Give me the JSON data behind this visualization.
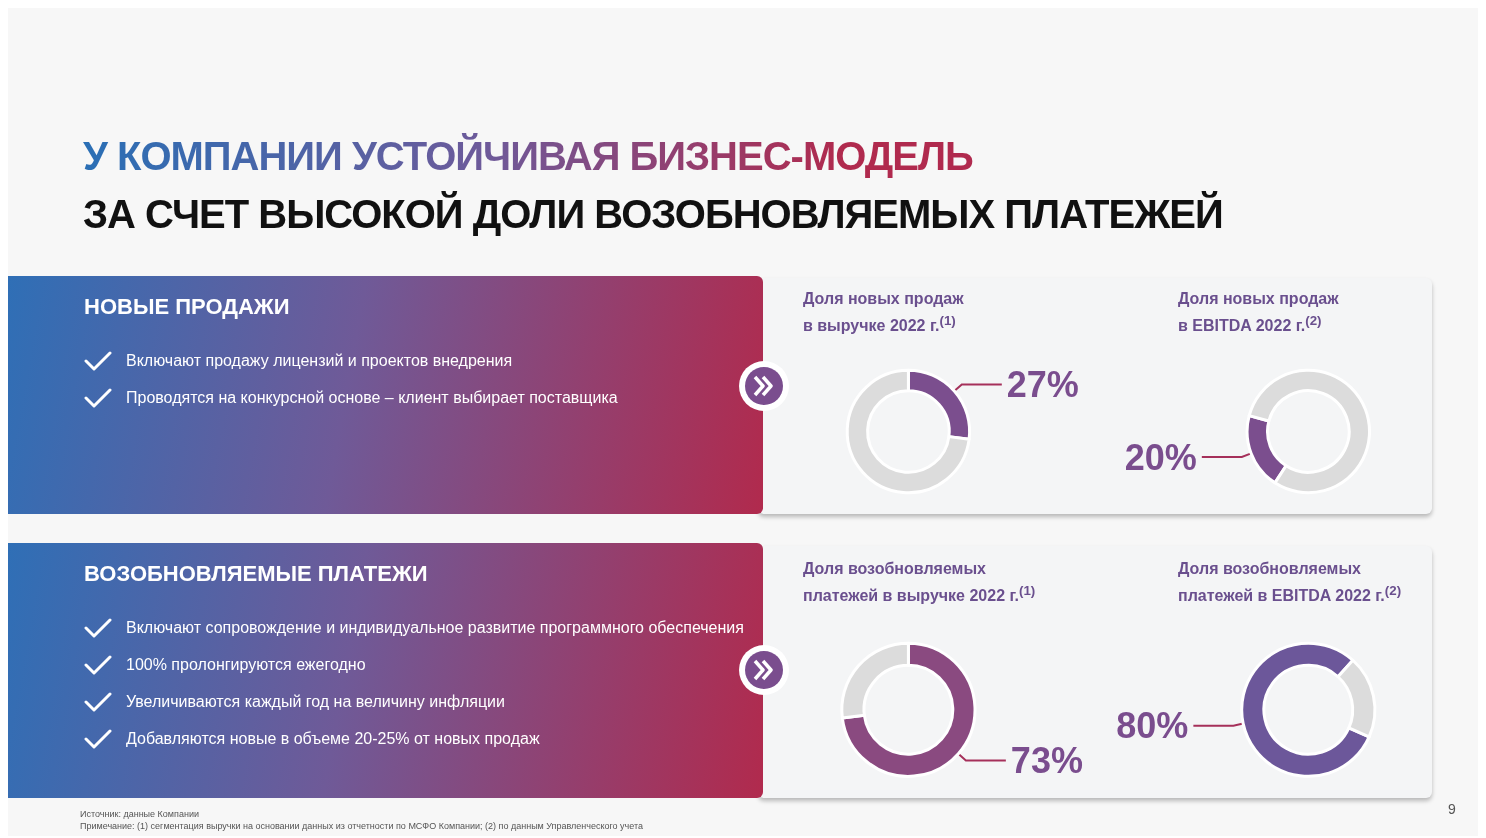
{
  "chart_data": [
    {
      "type": "other",
      "title": "У КОМПАНИИ УСТОЙЧИВАЯ БИЗНЕС-МОДЕЛЬ",
      "subtitle": "ЗА СЧЕТ ВЫСОКОЙ ДОЛИ ВОЗОБНОВЛЯЕМЫХ ПЛАТЕЖЕЙ"
    },
    {
      "type": "other",
      "title": "НОВЫЕ ПРОДАЖИ",
      "annotations": [
        "Включают продажу лицензий и проектов внедрения",
        "Проводятся на конкурсной основе – клиент выбирает поставщика"
      ]
    },
    {
      "type": "donut",
      "title": "Доля новых продаж\nв выручке 2022 г.$^{(1)}$",
      "categories": [
        null,
        null
      ],
      "values": [
        27,
        73
      ],
      "colors": [
        "#7b4e8e",
        "#dcdcdc"
      ],
      "value_labels": [
        "27%",
        null
      ]
    },
    {
      "type": "donut",
      "title": "Доля новых продаж\nв EBITDA 2022 г.$^{(2)}$",
      "categories": [
        null,
        null
      ],
      "values": [
        20,
        80
      ],
      "colors": [
        "#7b4e8e",
        "#dcdcdc"
      ],
      "value_labels": [
        "20%",
        null
      ]
    },
    {
      "type": "other",
      "title": "ВОЗОБНОВЛЯЕМЫЕ ПЛАТЕЖИ",
      "annotations": [
        "Включают сопровождение и индивидуальное развитие программного обеспечения",
        "100% пролонгируются ежегодно",
        "Увеличиваются каждый год на величину инфляции",
        "Добавляются новые в объеме 20-25% от новых продаж"
      ]
    },
    {
      "type": "donut",
      "title": "Доля возобновляемых\nплатежей в выручке 2022 г.$^{(1)}$",
      "categories": [
        null,
        null
      ],
      "values": [
        73,
        27
      ],
      "colors": [
        "#8a4a80",
        "#dcdcdc"
      ],
      "value_labels": [
        "73%",
        null
      ]
    },
    {
      "type": "donut",
      "title": "Доля возобновляемых\nплатежей в EBITDA 2022 г.$^{(2)}$",
      "categories": [
        null,
        null
      ],
      "values": [
        80,
        20
      ],
      "colors": [
        "#6c579a",
        "#dcdcdc"
      ],
      "value_labels": [
        "80%",
        null
      ]
    },
    {
      "type": "other",
      "annotations": [
        "Источник: данные Компании",
        "Примечание: (1) сегментация выручки на основании данных из отчетности по МСФО Компании; (2) по данным Управленческого учета"
      ]
    },
    {
      "type": "other",
      "annotations": [
        "9"
      ]
    }
  ]
}
